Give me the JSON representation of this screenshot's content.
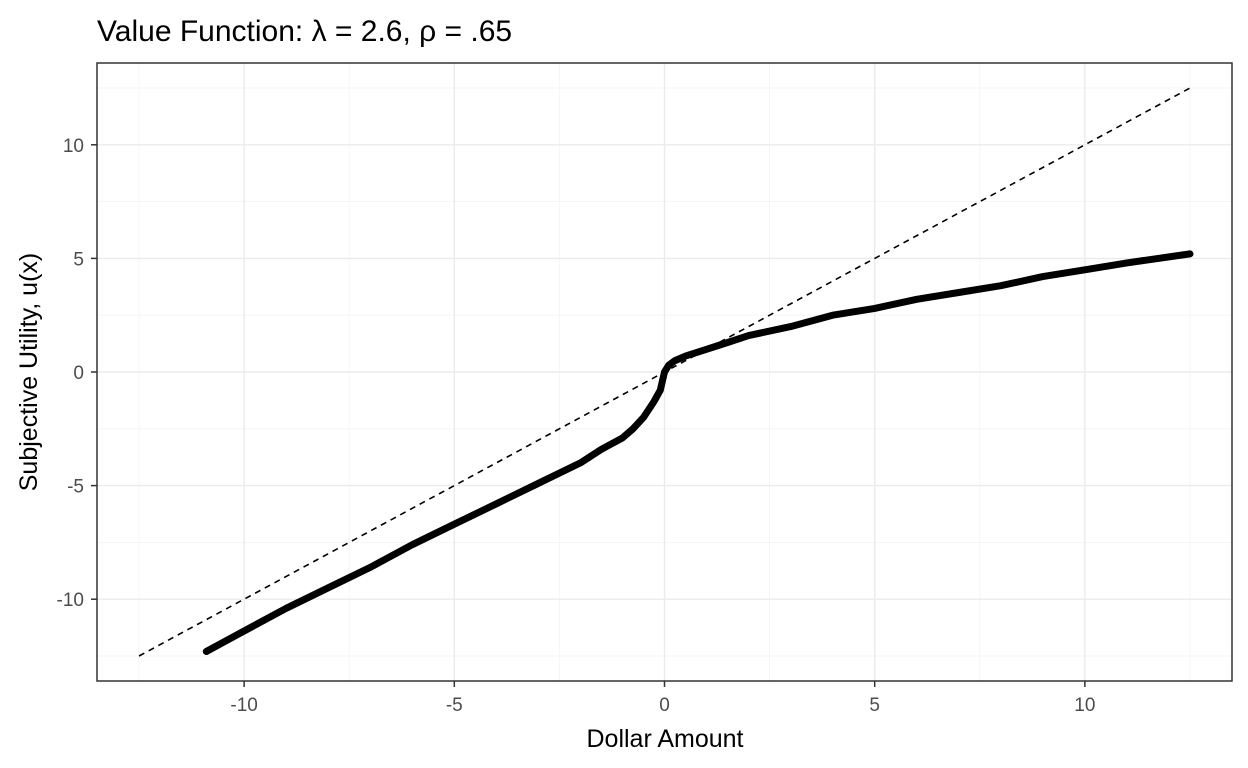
{
  "chart_data": {
    "type": "line",
    "title": "Value Function: λ = 2.6, ρ = .65",
    "xlabel": "Dollar Amount",
    "ylabel": "Subjective Utility, u(x)",
    "xlim": [
      -13.5,
      13.5
    ],
    "ylim": [
      -13.6,
      13.6
    ],
    "x_ticks": [
      -10,
      -5,
      0,
      5,
      10
    ],
    "x_tick_labels": [
      "-10",
      "-5",
      "0",
      "5",
      "10"
    ],
    "y_ticks": [
      -10,
      -5,
      0,
      5,
      10
    ],
    "y_tick_labels": [
      "-10",
      "-5",
      "0",
      "5",
      "10"
    ],
    "grid": true,
    "series": [
      {
        "style": "solid-thick",
        "color": "#000000",
        "x": [
          -10.9,
          -10,
          -9,
          -8,
          -7,
          -6,
          -5,
          -4,
          -3,
          -2,
          -1.5,
          -1,
          -0.75,
          -0.5,
          -0.25,
          -0.1,
          0,
          0.1,
          0.25,
          0.5,
          1,
          1.5,
          2,
          3,
          4,
          5,
          6,
          7,
          8,
          9,
          10,
          11,
          12.5
        ],
        "y": [
          -12.3,
          -11.4,
          -10.4,
          -9.5,
          -8.6,
          -7.6,
          -6.7,
          -5.8,
          -4.9,
          -4.0,
          -3.4,
          -2.9,
          -2.5,
          -2.0,
          -1.3,
          -0.8,
          0,
          0.3,
          0.5,
          0.7,
          1.0,
          1.3,
          1.6,
          2.0,
          2.5,
          2.8,
          3.2,
          3.5,
          3.8,
          4.2,
          4.5,
          4.8,
          5.2
        ]
      },
      {
        "style": "dashed",
        "color": "#000000",
        "x": [
          -12.5,
          12.5
        ],
        "y": [
          -12.5,
          12.5
        ]
      }
    ]
  }
}
